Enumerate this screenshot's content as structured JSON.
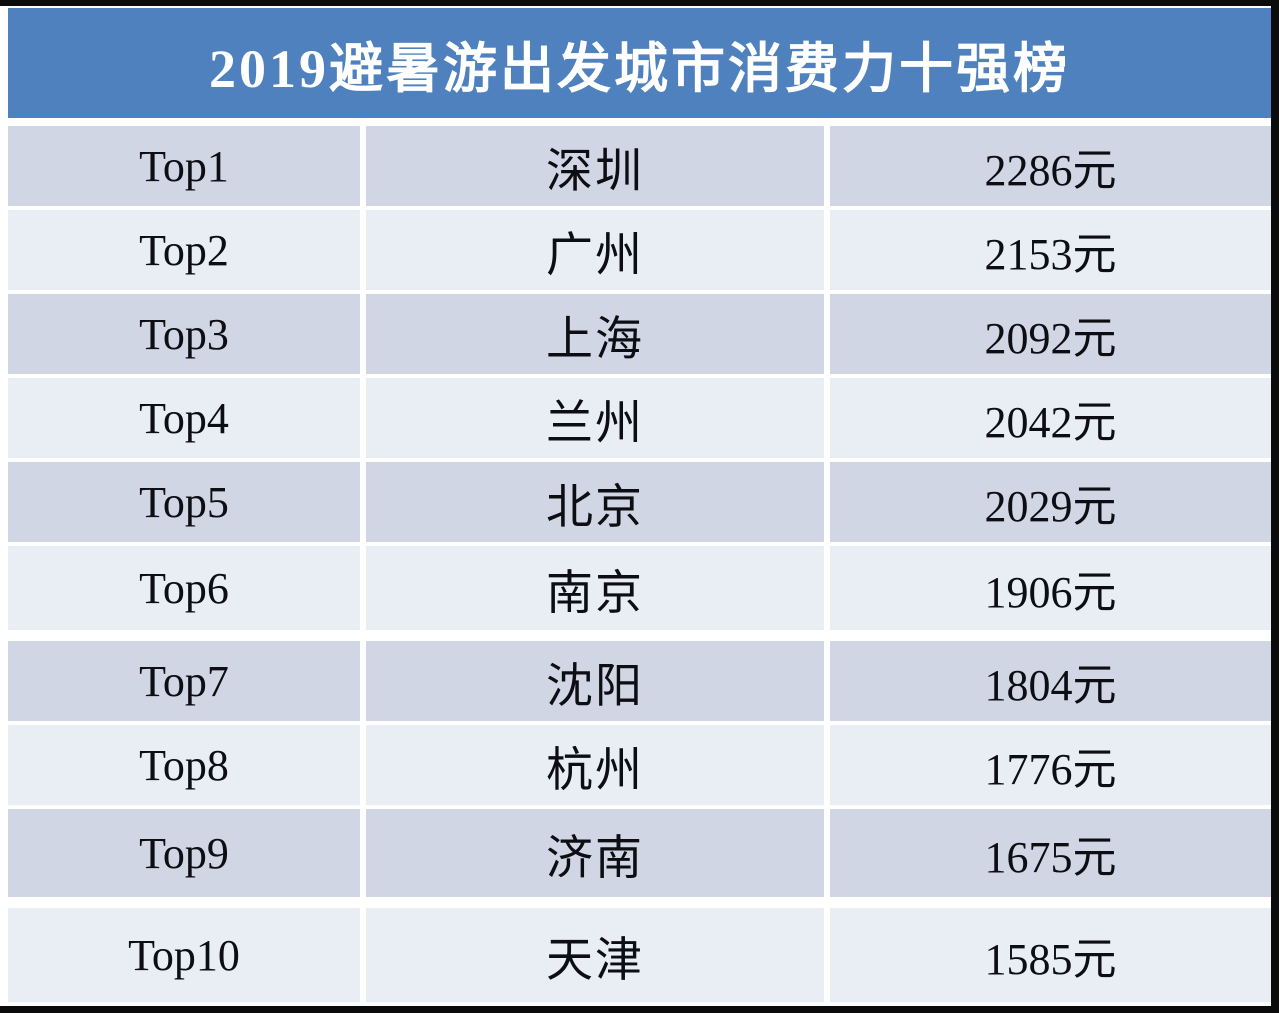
{
  "title": "2019避暑游出发城市消费力十强榜",
  "rows": [
    {
      "rank": "Top1",
      "city": "深圳",
      "price": "2286元"
    },
    {
      "rank": "Top2",
      "city": "广州",
      "price": "2153元"
    },
    {
      "rank": "Top3",
      "city": "上海",
      "price": "2092元"
    },
    {
      "rank": "Top4",
      "city": "兰州",
      "price": "2042元"
    },
    {
      "rank": "Top5",
      "city": "北京",
      "price": "2029元"
    },
    {
      "rank": "Top6",
      "city": "南京",
      "price": "1906元"
    },
    {
      "rank": "Top7",
      "city": "沈阳",
      "price": "1804元"
    },
    {
      "rank": "Top8",
      "city": "杭州",
      "price": "1776元"
    },
    {
      "rank": "Top9",
      "city": "济南",
      "price": "1675元"
    },
    {
      "rank": "Top10",
      "city": "天津",
      "price": "1585元"
    }
  ],
  "colors": {
    "header_bg": "#4E81BD",
    "header_text": "#FFFFFF",
    "row_dark": "#D1D6E4",
    "row_light": "#E9EDF4",
    "text": "#0D0D14",
    "frame": "#000000"
  },
  "chart_data": {
    "type": "table",
    "title": "2019避暑游出发城市消费力十强榜",
    "unit": "元",
    "ranks": [
      "Top1",
      "Top2",
      "Top3",
      "Top4",
      "Top5",
      "Top6",
      "Top7",
      "Top8",
      "Top9",
      "Top10"
    ],
    "categories": [
      "深圳",
      "广州",
      "上海",
      "兰州",
      "北京",
      "南京",
      "沈阳",
      "杭州",
      "济南",
      "天津"
    ],
    "values": [
      2286,
      2153,
      2092,
      2042,
      2029,
      1906,
      1804,
      1776,
      1675,
      1585
    ]
  }
}
